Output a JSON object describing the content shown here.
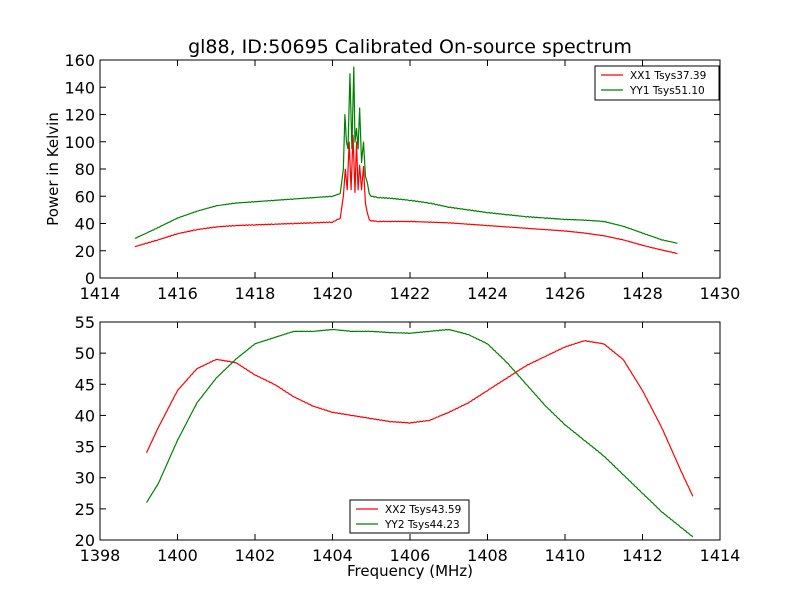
{
  "figure": {
    "title": "gl88, ID:50695 Calibrated On-source spectrum"
  },
  "chart_data": [
    {
      "type": "line",
      "title": "gl88, ID:50695 Calibrated On-source spectrum",
      "xlabel": "",
      "ylabel": "Power in Kelvin",
      "xlim": [
        1414,
        1430
      ],
      "ylim": [
        0,
        160
      ],
      "xticks": [
        1414,
        1416,
        1418,
        1420,
        1422,
        1424,
        1426,
        1428,
        1430
      ],
      "yticks": [
        0,
        20,
        40,
        60,
        80,
        100,
        120,
        140,
        160
      ],
      "grid": false,
      "legend": "top-right",
      "series": [
        {
          "name": "XX1 Tsys37.39",
          "color": "#ff0000",
          "x": [
            1414.9,
            1415.5,
            1416.0,
            1416.5,
            1417.0,
            1417.5,
            1418.0,
            1418.5,
            1419.0,
            1419.5,
            1420.0,
            1420.2,
            1420.28,
            1420.33,
            1420.38,
            1420.43,
            1420.48,
            1420.53,
            1420.58,
            1420.62,
            1420.66,
            1420.7,
            1420.75,
            1420.8,
            1420.85,
            1420.9,
            1420.95,
            1421.0,
            1421.2,
            1421.5,
            1422.0,
            1422.5,
            1423.0,
            1423.5,
            1424.0,
            1424.5,
            1425.0,
            1425.5,
            1426.0,
            1426.5,
            1427.0,
            1427.5,
            1428.0,
            1428.5,
            1428.9
          ],
          "y": [
            23,
            28,
            32.5,
            35.5,
            37.5,
            38.5,
            39,
            39.5,
            40,
            40.5,
            41,
            44,
            60,
            80,
            65,
            100,
            65,
            105,
            63,
            100,
            65,
            83,
            65,
            82,
            55,
            48,
            43,
            42,
            41.5,
            41.5,
            41.5,
            41,
            40.5,
            39.5,
            38.5,
            37.5,
            36.5,
            35.5,
            34.5,
            33,
            31,
            28,
            24,
            20.5,
            18
          ]
        },
        {
          "name": "YY1 Tsys51.10",
          "color": "#008000",
          "x": [
            1414.9,
            1415.5,
            1416.0,
            1416.5,
            1417.0,
            1417.5,
            1418.0,
            1418.5,
            1419.0,
            1419.5,
            1420.0,
            1420.2,
            1420.28,
            1420.32,
            1420.36,
            1420.4,
            1420.45,
            1420.5,
            1420.55,
            1420.58,
            1420.62,
            1420.66,
            1420.7,
            1420.75,
            1420.8,
            1420.85,
            1420.9,
            1420.95,
            1421.0,
            1421.2,
            1421.5,
            1422.0,
            1422.5,
            1423.0,
            1423.5,
            1424.0,
            1424.5,
            1425.0,
            1425.5,
            1426.0,
            1426.5,
            1427.0,
            1427.5,
            1428.0,
            1428.5,
            1428.9
          ],
          "y": [
            29,
            37,
            44,
            49,
            53,
            55,
            56,
            57,
            58,
            59,
            60,
            62,
            80,
            120,
            100,
            95,
            150,
            95,
            155,
            100,
            110,
            95,
            125,
            85,
            100,
            75,
            70,
            62,
            60,
            59,
            58.5,
            57,
            55,
            52,
            50,
            48,
            46.5,
            45,
            44,
            43,
            42.5,
            41.5,
            38,
            33,
            28,
            25.5
          ]
        }
      ]
    },
    {
      "type": "line",
      "title": "",
      "xlabel": "Frequency (MHz)",
      "ylabel": "",
      "xlim": [
        1398,
        1414
      ],
      "ylim": [
        20,
        55
      ],
      "xticks": [
        1398,
        1400,
        1402,
        1404,
        1406,
        1408,
        1410,
        1412,
        1414
      ],
      "yticks": [
        20,
        25,
        30,
        35,
        40,
        45,
        50,
        55
      ],
      "grid": false,
      "legend": "bottom-center",
      "series": [
        {
          "name": "XX2 Tsys43.59",
          "color": "#ff0000",
          "x": [
            1399.2,
            1399.5,
            1400.0,
            1400.5,
            1401.0,
            1401.5,
            1402.0,
            1402.5,
            1403.0,
            1403.5,
            1404.0,
            1404.5,
            1405.0,
            1405.5,
            1406.0,
            1406.5,
            1407.0,
            1407.5,
            1408.0,
            1408.5,
            1409.0,
            1409.5,
            1410.0,
            1410.5,
            1411.0,
            1411.5,
            1412.0,
            1412.5,
            1413.0,
            1413.3
          ],
          "y": [
            34,
            38,
            44,
            47.5,
            49,
            48.5,
            46.5,
            45,
            43,
            41.5,
            40.5,
            40,
            39.5,
            39,
            38.8,
            39.2,
            40.5,
            42,
            44,
            46,
            48,
            49.5,
            51,
            52,
            51.5,
            49,
            44,
            38,
            31,
            27
          ]
        },
        {
          "name": "YY2 Tsys44.23",
          "color": "#008000",
          "x": [
            1399.2,
            1399.5,
            1400.0,
            1400.5,
            1401.0,
            1401.5,
            1402.0,
            1402.5,
            1403.0,
            1403.5,
            1404.0,
            1404.5,
            1405.0,
            1405.5,
            1406.0,
            1406.5,
            1407.0,
            1407.5,
            1408.0,
            1408.5,
            1409.0,
            1409.5,
            1410.0,
            1410.5,
            1411.0,
            1411.5,
            1412.0,
            1412.5,
            1413.0,
            1413.3
          ],
          "y": [
            26,
            29,
            36,
            42,
            46,
            49,
            51.5,
            52.5,
            53.5,
            53.5,
            53.8,
            53.5,
            53.5,
            53.3,
            53.2,
            53.5,
            53.8,
            53,
            51.5,
            48.5,
            45,
            41.5,
            38.5,
            36,
            33.5,
            30.5,
            27.5,
            24.5,
            22,
            20.5
          ]
        }
      ]
    }
  ]
}
